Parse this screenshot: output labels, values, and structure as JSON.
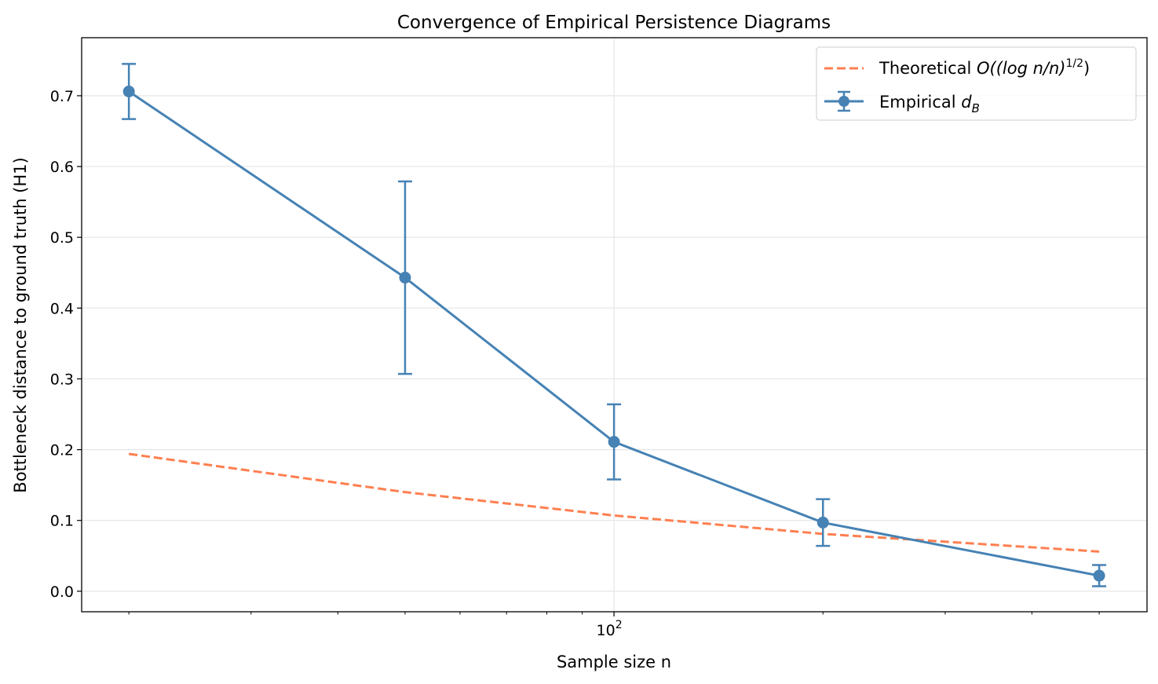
{
  "chart_data": {
    "type": "line",
    "title": "Convergence of Empirical Persistence Diagrams",
    "xlabel": "Sample size n",
    "ylabel": "Bottleneck distance to ground truth (H1)",
    "xscale": "log",
    "xlim": [
      17.1,
      586
    ],
    "ylim": [
      -0.029,
      0.782
    ],
    "x_ticks": [
      {
        "value": 100,
        "base": "10",
        "exp": "2"
      }
    ],
    "x_minor_ticks": [
      20,
      30,
      40,
      50,
      60,
      70,
      80,
      90,
      200,
      300,
      400,
      500
    ],
    "y_ticks": [
      "0.0",
      "0.1",
      "0.2",
      "0.3",
      "0.4",
      "0.5",
      "0.6",
      "0.7"
    ],
    "grid": true,
    "legend_position": "top-right",
    "x": [
      20,
      50,
      100,
      200,
      500
    ],
    "series": [
      {
        "name": "Theoretical O((log n/n)^(1/2))",
        "legend": {
          "prefix": "Theoretical ",
          "math": "O((log n/n)",
          "sup": "1/2",
          "suffix": ")"
        },
        "style": "dashed",
        "color": "#ff7f50",
        "values": [
          0.194,
          0.14,
          0.107,
          0.081,
          0.056
        ]
      },
      {
        "name": "Empirical d_B",
        "legend": {
          "prefix": "Empirical ",
          "math": "d",
          "sub": "B"
        },
        "style": "solid-marker-errorbar",
        "color": "#4682b4",
        "values": [
          0.706,
          0.443,
          0.211,
          0.097,
          0.022
        ],
        "errors": [
          0.039,
          0.136,
          0.053,
          0.033,
          0.015
        ]
      }
    ]
  }
}
